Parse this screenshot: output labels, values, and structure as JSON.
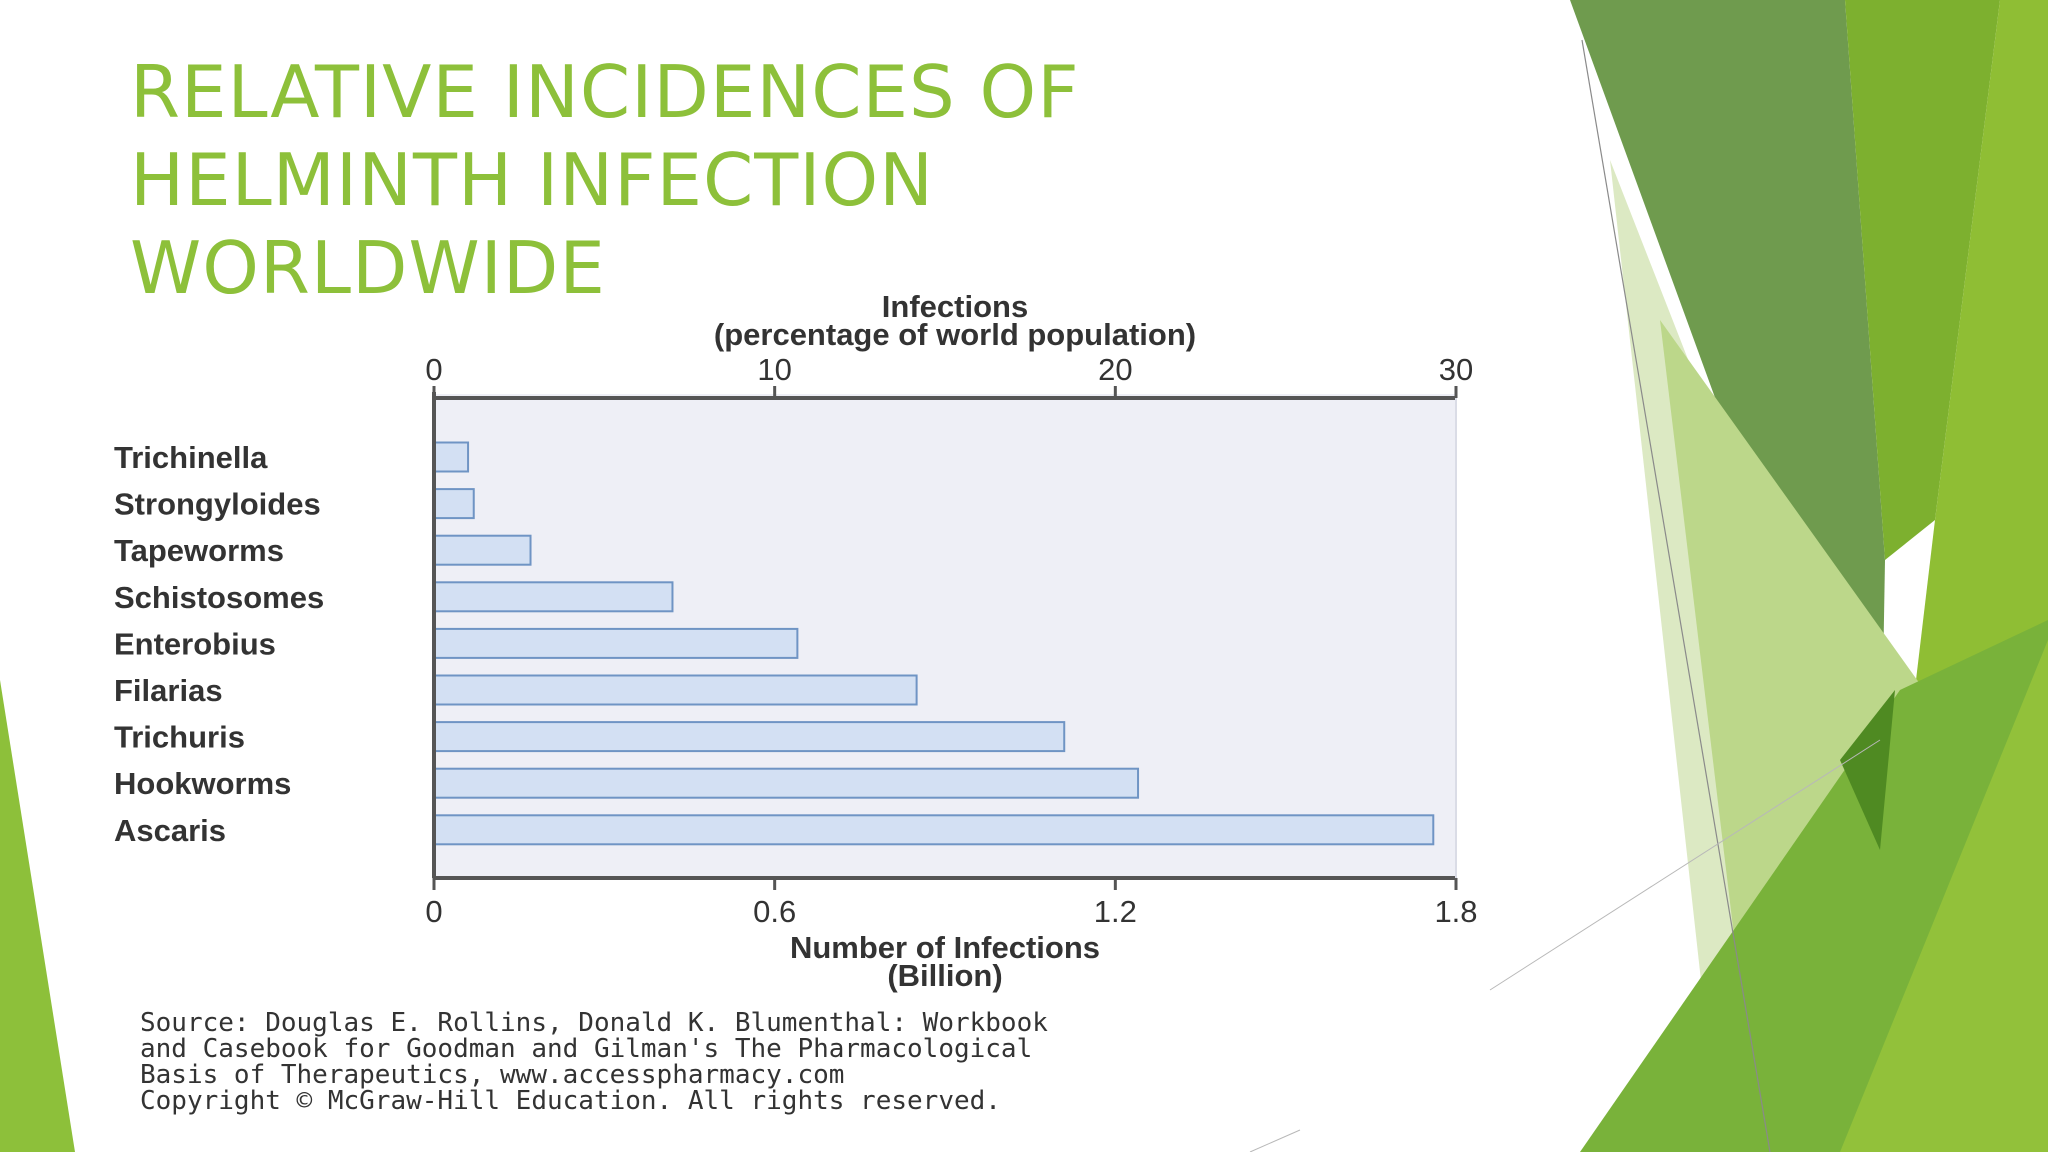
{
  "slide": {
    "title": "RELATIVE INCIDENCES OF HELMINTH INFECTION WORLDWIDE",
    "accent_color": "#8DC03A",
    "source_lines": [
      "Source: Douglas E. Rollins, Donald K. Blumenthal: Workbook",
      "and Casebook for Goodman and Gilman's The Pharmacological",
      "Basis of Therapeutics, www.accesspharmacy.com",
      "Copyright © McGraw-Hill Education.  All rights reserved."
    ]
  },
  "chart_data": {
    "type": "bar",
    "orientation": "horizontal",
    "categories": [
      "Trichinella",
      "Strongyloides",
      "Tapeworms",
      "Schistosomes",
      "Enterobius",
      "Filarias",
      "Trichuris",
      "Hookworms",
      "Ascaris"
    ],
    "values": [
      0.06,
      0.07,
      0.17,
      0.42,
      0.64,
      0.85,
      1.11,
      1.24,
      1.76
    ],
    "xlabel_lines": [
      "Number of Infections",
      "(Billion)"
    ],
    "xlim": [
      0,
      1.8
    ],
    "x_ticks": [
      "0",
      "0.6",
      "1.2",
      "1.8"
    ],
    "top_axis": {
      "label_lines": [
        "Infections",
        "(percentage of world population)"
      ],
      "range": [
        0,
        30
      ],
      "ticks": [
        "0",
        "10",
        "20",
        "30"
      ]
    },
    "bar_fill": "#D3E0F3",
    "bar_stroke": "#6F94C4",
    "plot_background": "#EEEFF6",
    "grid": false
  }
}
